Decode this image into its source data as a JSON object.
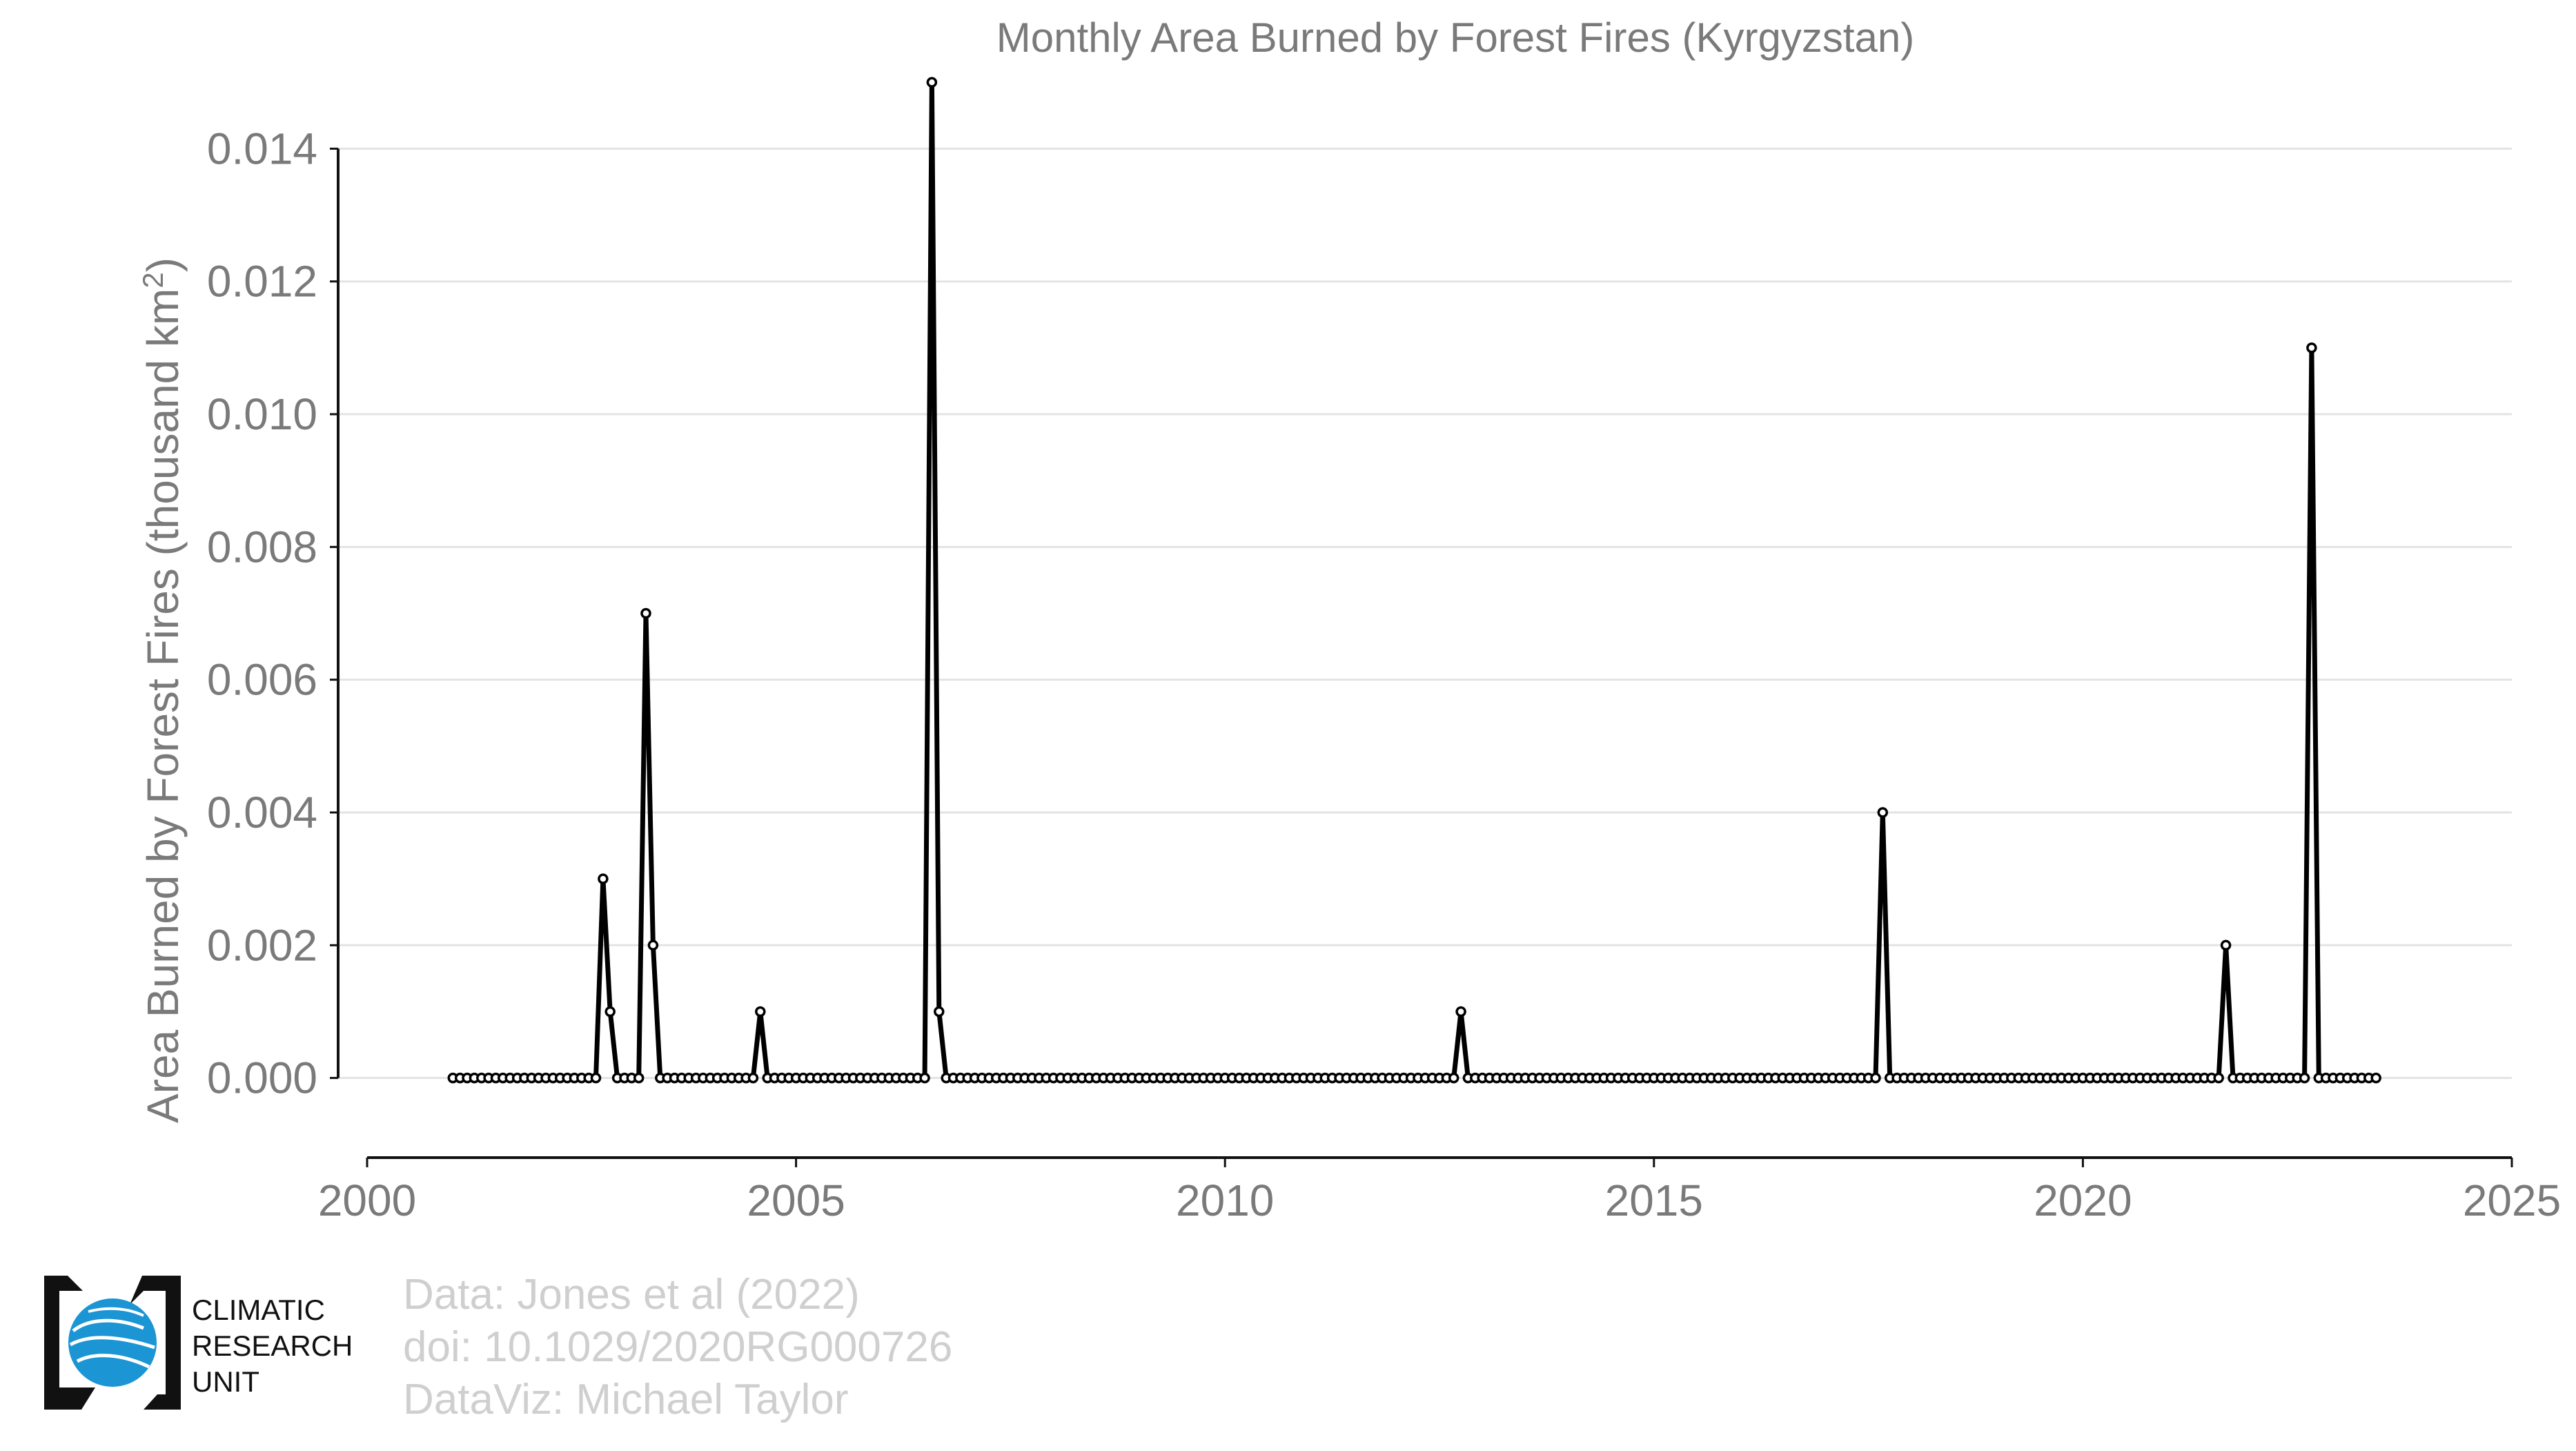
{
  "chart_data": {
    "type": "line",
    "title": "Monthly Area Burned by Forest Fires (Kyrgyzstan)",
    "ylabel_main": "Area Burned by Forest Fires (thousand km",
    "ylabel_sup": "2",
    "ylabel_end": ")",
    "xlabel": "",
    "xlim": [
      2000,
      2025
    ],
    "ylim": [
      -0.0012,
      0.0152
    ],
    "x_ticks": [
      "2000",
      "2005",
      "2010",
      "2015",
      "2020",
      "2025"
    ],
    "y_ticks": [
      "0.000",
      "0.002",
      "0.004",
      "0.006",
      "0.008",
      "0.010",
      "0.012",
      "0.014"
    ],
    "grid": true,
    "start": {
      "year": 2001,
      "month": 1
    },
    "end": {
      "year": 2023,
      "month": 6
    },
    "default_value": 0,
    "nonzero": [
      {
        "year": 2002,
        "month": 10,
        "value": 0.003
      },
      {
        "year": 2002,
        "month": 11,
        "value": 0.001
      },
      {
        "year": 2003,
        "month": 4,
        "value": 0.007
      },
      {
        "year": 2003,
        "month": 5,
        "value": 0.002
      },
      {
        "year": 2004,
        "month": 8,
        "value": 0.001
      },
      {
        "year": 2006,
        "month": 8,
        "value": 0.015
      },
      {
        "year": 2006,
        "month": 9,
        "value": 0.001
      },
      {
        "year": 2012,
        "month": 10,
        "value": 0.001
      },
      {
        "year": 2017,
        "month": 9,
        "value": 0.004
      },
      {
        "year": 2021,
        "month": 9,
        "value": 0.002
      },
      {
        "year": 2022,
        "month": 9,
        "value": 0.011
      }
    ],
    "series_color": "#000000"
  },
  "logo": {
    "line1": "CLIMATIC",
    "line2": "RESEARCH",
    "line3": "UNIT",
    "globe_color": "#1b95d4"
  },
  "credits": {
    "line1": "Data: Jones et al (2022)",
    "line2": "doi: 10.1029/2020RG000726",
    "line3": "DataViz: Michael Taylor"
  }
}
